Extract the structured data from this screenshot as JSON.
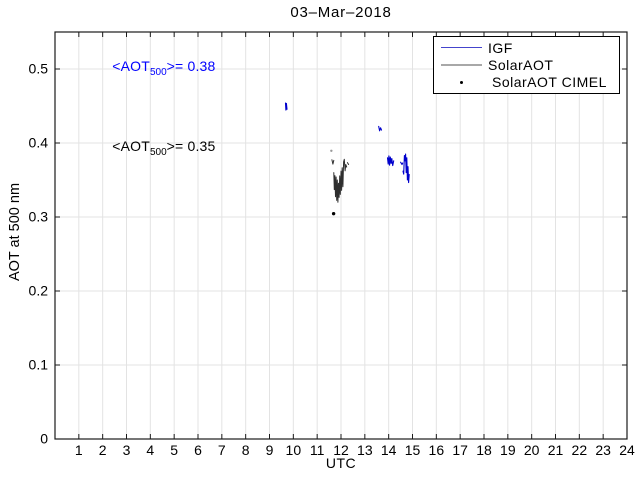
{
  "chart_data": {
    "type": "line",
    "title": "03–Mar–2018",
    "xlabel": "UTC",
    "ylabel": "AOT at 500 nm",
    "xlim": [
      0,
      24
    ],
    "ylim": [
      0,
      0.55
    ],
    "grid": true,
    "grid_color": "#e3e3e3",
    "axis_color": "#1a1a1a",
    "xticks": [
      1,
      2,
      3,
      4,
      5,
      6,
      7,
      8,
      9,
      10,
      11,
      12,
      13,
      14,
      15,
      16,
      17,
      18,
      19,
      20,
      21,
      22,
      23,
      24
    ],
    "yticks": [
      {
        "v": 0,
        "label": "0"
      },
      {
        "v": 0.1,
        "label": "0.1"
      },
      {
        "v": 0.2,
        "label": "0.2"
      },
      {
        "v": 0.3,
        "label": "0.3"
      },
      {
        "v": 0.4,
        "label": "0.4"
      },
      {
        "v": 0.5,
        "label": "0.5"
      }
    ],
    "legend": {
      "position": "top-right",
      "items": [
        {
          "label": "IGF",
          "style": "line",
          "color": "#4444cc"
        },
        {
          "label": "SolarAOT",
          "style": "line",
          "color": "#a8a8a8"
        },
        {
          "label": "SolarAOT CIMEL",
          "style": "dot",
          "color": "#000000"
        }
      ]
    },
    "annotations": [
      {
        "prefix": "<AOT",
        "sub": "500",
        "suffix": ">= 0.38",
        "color": "#0000ff",
        "x": 2.4,
        "y": 0.503
      },
      {
        "prefix": "<AOT",
        "sub": "500",
        "suffix": ">= 0.35",
        "color": "#000000",
        "x": 2.4,
        "y": 0.394
      }
    ],
    "series": [
      {
        "name": "IGF",
        "type": "line",
        "color": "#0000cc",
        "width": 1.1,
        "segments": [
          [
            [
              9.67,
              0.454
            ],
            [
              9.69,
              0.4445
            ],
            [
              9.71,
              0.4535
            ],
            [
              9.735,
              0.4455
            ]
          ],
          [
            [
              13.58,
              0.4225
            ],
            [
              13.62,
              0.4165
            ],
            [
              13.66,
              0.4205
            ],
            [
              13.7,
              0.4175
            ]
          ],
          [
            [
              13.95,
              0.38
            ],
            [
              13.98,
              0.3715
            ],
            [
              14.01,
              0.3825
            ],
            [
              14.04,
              0.37
            ],
            [
              14.07,
              0.381
            ],
            [
              14.1,
              0.3725
            ],
            [
              14.13,
              0.379
            ],
            [
              14.17,
              0.3695
            ],
            [
              14.21,
              0.376
            ]
          ],
          [
            [
              14.5,
              0.374
            ],
            [
              14.56,
              0.371
            ],
            [
              14.59,
              0.373
            ]
          ],
          [
            [
              14.6,
              0.362
            ],
            [
              14.63,
              0.358
            ],
            [
              14.66,
              0.383
            ],
            [
              14.685,
              0.376
            ],
            [
              14.71,
              0.385
            ],
            [
              14.735,
              0.36
            ],
            [
              14.76,
              0.38
            ],
            [
              14.785,
              0.35
            ],
            [
              14.81,
              0.368
            ],
            [
              14.835,
              0.3465
            ],
            [
              14.86,
              0.3575
            ]
          ]
        ]
      },
      {
        "name": "SolarAOT",
        "type": "line",
        "color": "#2e2e2e",
        "width": 1.0,
        "segments": [
          [
            [
              11.62,
              0.3775
            ],
            [
              11.66,
              0.3715
            ],
            [
              11.7,
              0.3765
            ]
          ],
          [
            [
              11.7,
              0.36
            ],
            [
              11.72,
              0.337
            ],
            [
              11.745,
              0.356
            ],
            [
              11.77,
              0.3275
            ],
            [
              11.795,
              0.354
            ],
            [
              11.82,
              0.3225
            ],
            [
              11.845,
              0.35
            ],
            [
              11.87,
              0.32
            ],
            [
              11.895,
              0.3455
            ],
            [
              11.92,
              0.3265
            ],
            [
              11.945,
              0.3555
            ],
            [
              11.97,
              0.3305
            ],
            [
              12.0,
              0.362
            ],
            [
              12.025,
              0.336
            ],
            [
              12.05,
              0.3665
            ],
            [
              12.08,
              0.341
            ],
            [
              12.11,
              0.3745
            ],
            [
              12.14,
              0.378
            ],
            [
              12.17,
              0.3625
            ],
            [
              12.2,
              0.371
            ],
            [
              12.24,
              0.3675
            ]
          ],
          [
            [
              12.27,
              0.3735
            ],
            [
              12.32,
              0.371
            ]
          ]
        ],
        "stray_dots": [
          {
            "x": 11.595,
            "y": 0.3895,
            "color": "#9a9a9a"
          }
        ]
      },
      {
        "name": "SolarAOT CIMEL",
        "type": "scatter",
        "color": "#000000",
        "points": [
          [
            11.69,
            0.3045
          ]
        ]
      }
    ]
  }
}
